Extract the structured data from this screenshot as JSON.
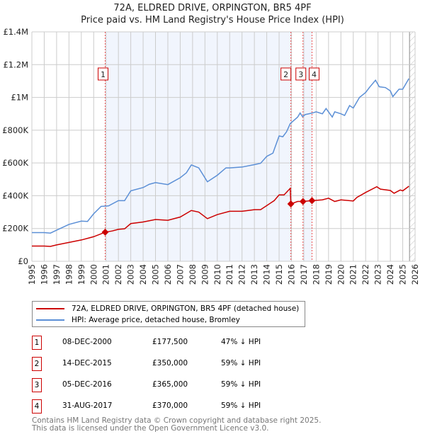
{
  "title": "72A, ELDRED DRIVE, ORPINGTON, BR5 4PF",
  "subtitle": "Price paid vs. HM Land Registry's House Price Index (HPI)",
  "chart_data": {
    "type": "line",
    "xlim": [
      1995,
      2026
    ],
    "ylim": [
      0,
      1400000
    ],
    "yticks": [
      {
        "v": 0,
        "label": "£0"
      },
      {
        "v": 200000,
        "label": "£200K"
      },
      {
        "v": 400000,
        "label": "£400K"
      },
      {
        "v": 600000,
        "label": "£600K"
      },
      {
        "v": 800000,
        "label": "£800K"
      },
      {
        "v": 1000000,
        "label": "£1M"
      },
      {
        "v": 1200000,
        "label": "£1.2M"
      },
      {
        "v": 1400000,
        "label": "£1.4M"
      }
    ],
    "xticks": [
      "1995",
      "1996",
      "1997",
      "1998",
      "1999",
      "2000",
      "2001",
      "2002",
      "2003",
      "2004",
      "2005",
      "2006",
      "2007",
      "2008",
      "2009",
      "2010",
      "2011",
      "2012",
      "2013",
      "2014",
      "2015",
      "2016",
      "2017",
      "2018",
      "2019",
      "2020",
      "2021",
      "2022",
      "2023",
      "2024",
      "2025",
      "2026"
    ],
    "grid": true,
    "shaded_ranges": [
      [
        2000.93,
        2015.95
      ],
      [
        2016.93,
        2017.66
      ]
    ],
    "forecast_from": 2025.55,
    "series": [
      {
        "name": "72A, ELDRED DRIVE, ORPINGTON, BR5 4PF (detached house)",
        "color": "#cc0000",
        "points": [
          [
            1995,
            93000
          ],
          [
            1996,
            93000
          ],
          [
            1996.5,
            91000
          ],
          [
            1997,
            100000
          ],
          [
            1998,
            115000
          ],
          [
            1999,
            130000
          ],
          [
            2000,
            150000
          ],
          [
            2000.93,
            177500
          ],
          [
            2001.5,
            185000
          ],
          [
            2002,
            195000
          ],
          [
            2002.5,
            198000
          ],
          [
            2003,
            230000
          ],
          [
            2004,
            240000
          ],
          [
            2005,
            255000
          ],
          [
            2006,
            250000
          ],
          [
            2007,
            270000
          ],
          [
            2007.9,
            310000
          ],
          [
            2008.5,
            300000
          ],
          [
            2009.2,
            260000
          ],
          [
            2010,
            285000
          ],
          [
            2011,
            305000
          ],
          [
            2012,
            305000
          ],
          [
            2013,
            315000
          ],
          [
            2013.5,
            315000
          ],
          [
            2014,
            340000
          ],
          [
            2014.6,
            370000
          ],
          [
            2015,
            405000
          ],
          [
            2015.4,
            405000
          ],
          [
            2015.9,
            445000
          ],
          [
            2015.95,
            350000
          ],
          [
            2016.5,
            365000
          ],
          [
            2016.93,
            365000
          ],
          [
            2017.66,
            370000
          ],
          [
            2018.5,
            375000
          ],
          [
            2019,
            385000
          ],
          [
            2019.5,
            365000
          ],
          [
            2020,
            375000
          ],
          [
            2021,
            368000
          ],
          [
            2021.3,
            390000
          ],
          [
            2022,
            420000
          ],
          [
            2022.9,
            455000
          ],
          [
            2023.2,
            440000
          ],
          [
            2024,
            432000
          ],
          [
            2024.3,
            415000
          ],
          [
            2024.8,
            435000
          ],
          [
            2025,
            430000
          ],
          [
            2025.5,
            458000
          ]
        ]
      },
      {
        "name": "HPI: Average price, detached house, Bromley",
        "color": "#5b8fd6",
        "points": [
          [
            1995,
            175000
          ],
          [
            1996,
            175000
          ],
          [
            1996.5,
            172000
          ],
          [
            1997,
            190000
          ],
          [
            1998,
            225000
          ],
          [
            1999,
            245000
          ],
          [
            1999.5,
            243000
          ],
          [
            2000,
            290000
          ],
          [
            2000.6,
            335000
          ],
          [
            2001.2,
            338000
          ],
          [
            2002,
            370000
          ],
          [
            2002.5,
            370000
          ],
          [
            2003,
            430000
          ],
          [
            2004,
            450000
          ],
          [
            2004.5,
            470000
          ],
          [
            2005,
            480000
          ],
          [
            2006,
            468000
          ],
          [
            2007,
            510000
          ],
          [
            2007.5,
            540000
          ],
          [
            2007.9,
            588000
          ],
          [
            2008.5,
            570000
          ],
          [
            2009.2,
            485000
          ],
          [
            2010,
            525000
          ],
          [
            2010.7,
            570000
          ],
          [
            2011,
            570000
          ],
          [
            2012,
            575000
          ],
          [
            2013,
            590000
          ],
          [
            2013.5,
            598000
          ],
          [
            2014,
            640000
          ],
          [
            2014.5,
            660000
          ],
          [
            2015,
            765000
          ],
          [
            2015.3,
            760000
          ],
          [
            2015.6,
            790000
          ],
          [
            2015.9,
            840000
          ],
          [
            2016.5,
            880000
          ],
          [
            2016.7,
            905000
          ],
          [
            2016.9,
            882000
          ],
          [
            2017.1,
            895000
          ],
          [
            2017.7,
            905000
          ],
          [
            2018,
            912000
          ],
          [
            2018.5,
            900000
          ],
          [
            2018.8,
            932000
          ],
          [
            2019.3,
            880000
          ],
          [
            2019.5,
            912000
          ],
          [
            2020,
            900000
          ],
          [
            2020.3,
            890000
          ],
          [
            2020.7,
            950000
          ],
          [
            2021,
            935000
          ],
          [
            2021.5,
            1000000
          ],
          [
            2022,
            1030000
          ],
          [
            2022.3,
            1060000
          ],
          [
            2022.8,
            1105000
          ],
          [
            2023.1,
            1065000
          ],
          [
            2023.6,
            1060000
          ],
          [
            2024,
            1040000
          ],
          [
            2024.2,
            1005000
          ],
          [
            2024.7,
            1050000
          ],
          [
            2025,
            1050000
          ],
          [
            2025.5,
            1115000
          ]
        ]
      }
    ],
    "sales": [
      {
        "n": "1",
        "date": "08-DEC-2000",
        "x": 2000.93,
        "price": "£177,500",
        "value": 177500,
        "hpi": "47% ↓ HPI"
      },
      {
        "n": "2",
        "date": "14-DEC-2015",
        "x": 2015.95,
        "price": "£350,000",
        "value": 350000,
        "hpi": "59% ↓ HPI"
      },
      {
        "n": "3",
        "date": "05-DEC-2016",
        "x": 2016.93,
        "price": "£365,000",
        "value": 365000,
        "hpi": "59% ↓ HPI"
      },
      {
        "n": "4",
        "date": "31-AUG-2017",
        "x": 2017.66,
        "price": "£370,000",
        "value": 370000,
        "hpi": "59% ↓ HPI"
      }
    ]
  },
  "legend": {
    "property": "72A, ELDRED DRIVE, ORPINGTON, BR5 4PF (detached house)",
    "hpi": "HPI: Average price, detached house, Bromley"
  },
  "footer": {
    "line1": "Contains HM Land Registry data © Crown copyright and database right 2025.",
    "line2": "This data is licensed under the Open Government Licence v3.0."
  }
}
